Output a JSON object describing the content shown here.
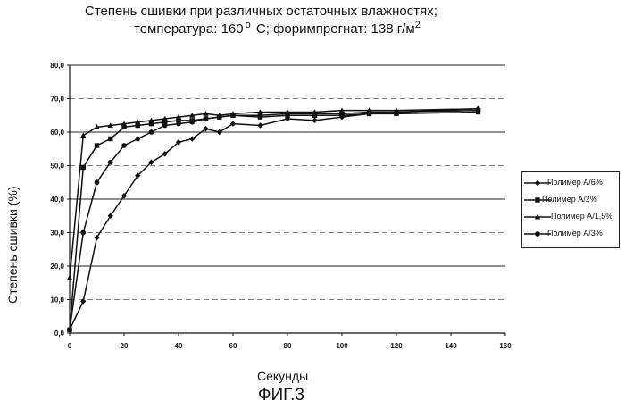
{
  "title": {
    "line1": "Степень сшивки при различных остаточных влажностях;",
    "line2_a": "температура: 160",
    "line2_deg": "o",
    "line2_b": " С; форимпрегнат: 138 г/м",
    "line2_sup": "2"
  },
  "caption": "ФИГ.3",
  "colors": {
    "series": "#111111",
    "grid_solid": "#222222",
    "grid_dash": "#555555"
  },
  "chart_data": {
    "type": "line",
    "xlabel": "Секунды",
    "ylabel": "Степень сшивки (%)",
    "xlim": [
      0,
      160
    ],
    "ylim": [
      0,
      80
    ],
    "x_ticks": [
      "0",
      "20",
      "40",
      "60",
      "80",
      "100",
      "120",
      "140",
      "160"
    ],
    "x_tick_values": [
      0,
      20,
      40,
      60,
      80,
      100,
      120,
      140,
      160
    ],
    "y_ticks": [
      "0,0",
      "10,0",
      "20,0",
      "30,0",
      "40,0",
      "50,0",
      "60,0",
      "70,0",
      "80,0"
    ],
    "y_tick_values": [
      0,
      10,
      20,
      30,
      40,
      50,
      60,
      70,
      80
    ],
    "grid": true,
    "legend_position": "right",
    "series": [
      {
        "name": "Полимер А/6%",
        "marker": "diamond",
        "x": [
          0,
          5,
          10,
          15,
          20,
          25,
          30,
          35,
          40,
          45,
          50,
          55,
          60,
          70,
          80,
          90,
          100,
          110,
          120,
          150
        ],
        "y": [
          1,
          9.5,
          28.5,
          35,
          41,
          47,
          51,
          53.5,
          57,
          58,
          61,
          60,
          62.5,
          62,
          64,
          63.5,
          64.5,
          65.5,
          66,
          67
        ]
      },
      {
        "name": "Полимер А/2%",
        "marker": "square",
        "x": [
          0,
          5,
          10,
          15,
          20,
          25,
          30,
          35,
          40,
          45,
          50,
          55,
          60,
          70,
          80,
          90,
          100,
          110,
          120,
          150
        ],
        "y": [
          1,
          49.5,
          56,
          58,
          61.5,
          62,
          62.5,
          63,
          63.5,
          63.5,
          64,
          64.5,
          65,
          64.5,
          65,
          65,
          65,
          65.5,
          65.5,
          66
        ]
      },
      {
        "name": "Полимер А/1,5%",
        "marker": "triangle",
        "x": [
          0,
          5,
          10,
          15,
          20,
          25,
          30,
          35,
          40,
          45,
          50,
          55,
          60,
          70,
          80,
          90,
          100,
          110,
          120,
          150
        ],
        "y": [
          16.5,
          59,
          61.5,
          62,
          62.5,
          63,
          63.5,
          64,
          64.5,
          65,
          65.5,
          65,
          65.5,
          66,
          66,
          66,
          66.5,
          66.5,
          66.5,
          67
        ]
      },
      {
        "name": "Полимер А/3%",
        "marker": "circle",
        "x": [
          0,
          5,
          10,
          15,
          20,
          25,
          30,
          35,
          40,
          45,
          50,
          55,
          60,
          70,
          80,
          90,
          100,
          110,
          120,
          150
        ],
        "y": [
          1,
          30,
          45,
          51,
          56,
          58,
          60,
          62,
          62.5,
          63,
          64,
          64.5,
          65,
          65,
          65.5,
          65.5,
          65.5,
          66,
          66,
          66.5
        ]
      }
    ]
  }
}
